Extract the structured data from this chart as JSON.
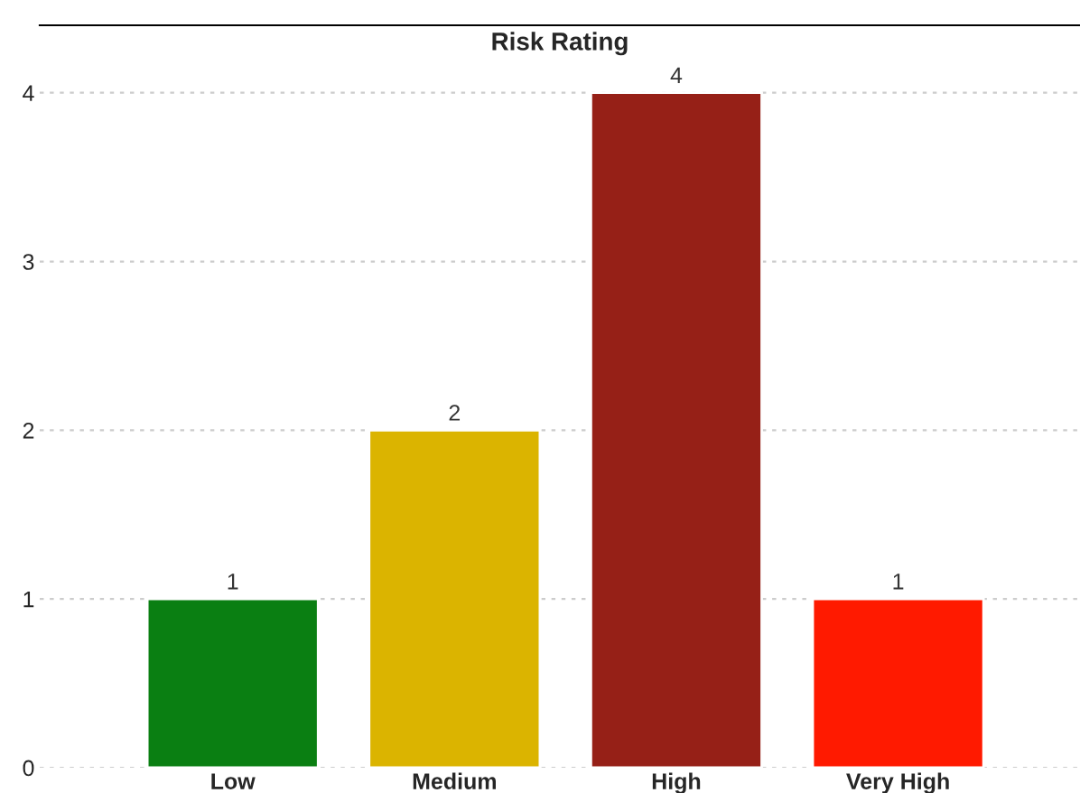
{
  "chart_data": {
    "type": "bar",
    "title": "Risk Rating",
    "categories": [
      "Low",
      "Medium",
      "High",
      "Very High"
    ],
    "values": [
      1,
      2,
      4,
      1
    ],
    "colors": [
      "#0a7f12",
      "#dbb400",
      "#962017",
      "#ff1a00"
    ],
    "ylim": [
      0,
      4.4
    ],
    "yticks": [
      0,
      1,
      2,
      3,
      4
    ],
    "grid": "y",
    "data_labels": true
  }
}
